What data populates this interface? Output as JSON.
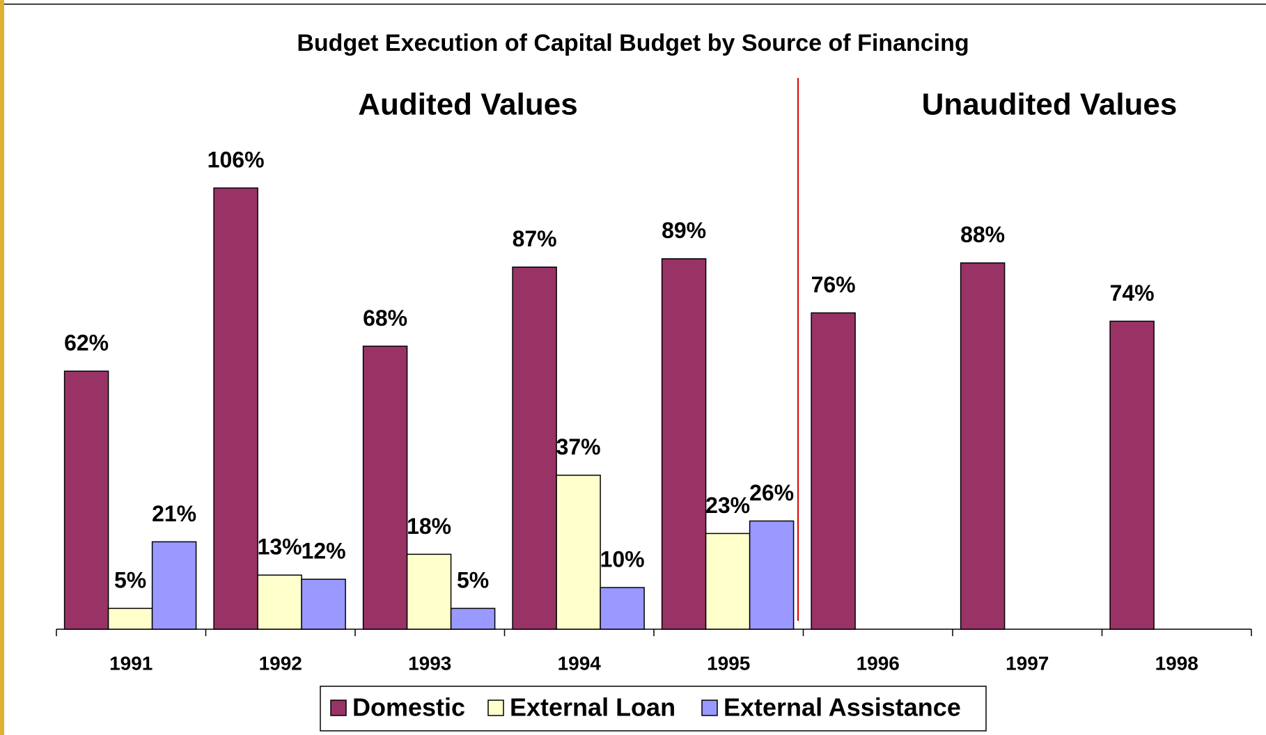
{
  "chart_data": {
    "type": "bar",
    "title": "Budget Execution of Capital Budget by Source of Financing",
    "annotations": [
      "Audited Values",
      "Unaudited Values"
    ],
    "categories": [
      "1991",
      "1992",
      "1993",
      "1994",
      "1995",
      "1996",
      "1997",
      "1998"
    ],
    "series": [
      {
        "name": "Domestic",
        "color": "#993366",
        "values": [
          62,
          106,
          68,
          87,
          89,
          76,
          88,
          74
        ],
        "value_labels": [
          "62%",
          "106%",
          "68%",
          "87%",
          "89%",
          "76%",
          "88%",
          "74%"
        ]
      },
      {
        "name": "External Loan",
        "color": "#ffffcc",
        "values": [
          5,
          13,
          18,
          37,
          23,
          null,
          null,
          null
        ],
        "value_labels": [
          "5%",
          "13%",
          "18%",
          "37%",
          "23%",
          null,
          null,
          null
        ]
      },
      {
        "name": "External Assistance",
        "color": "#9999ff",
        "values": [
          21,
          12,
          5,
          10,
          26,
          null,
          null,
          null
        ],
        "value_labels": [
          "21%",
          "12%",
          "5%",
          "10%",
          "26%",
          null,
          null,
          null
        ]
      }
    ],
    "legend": "bottom"
  }
}
